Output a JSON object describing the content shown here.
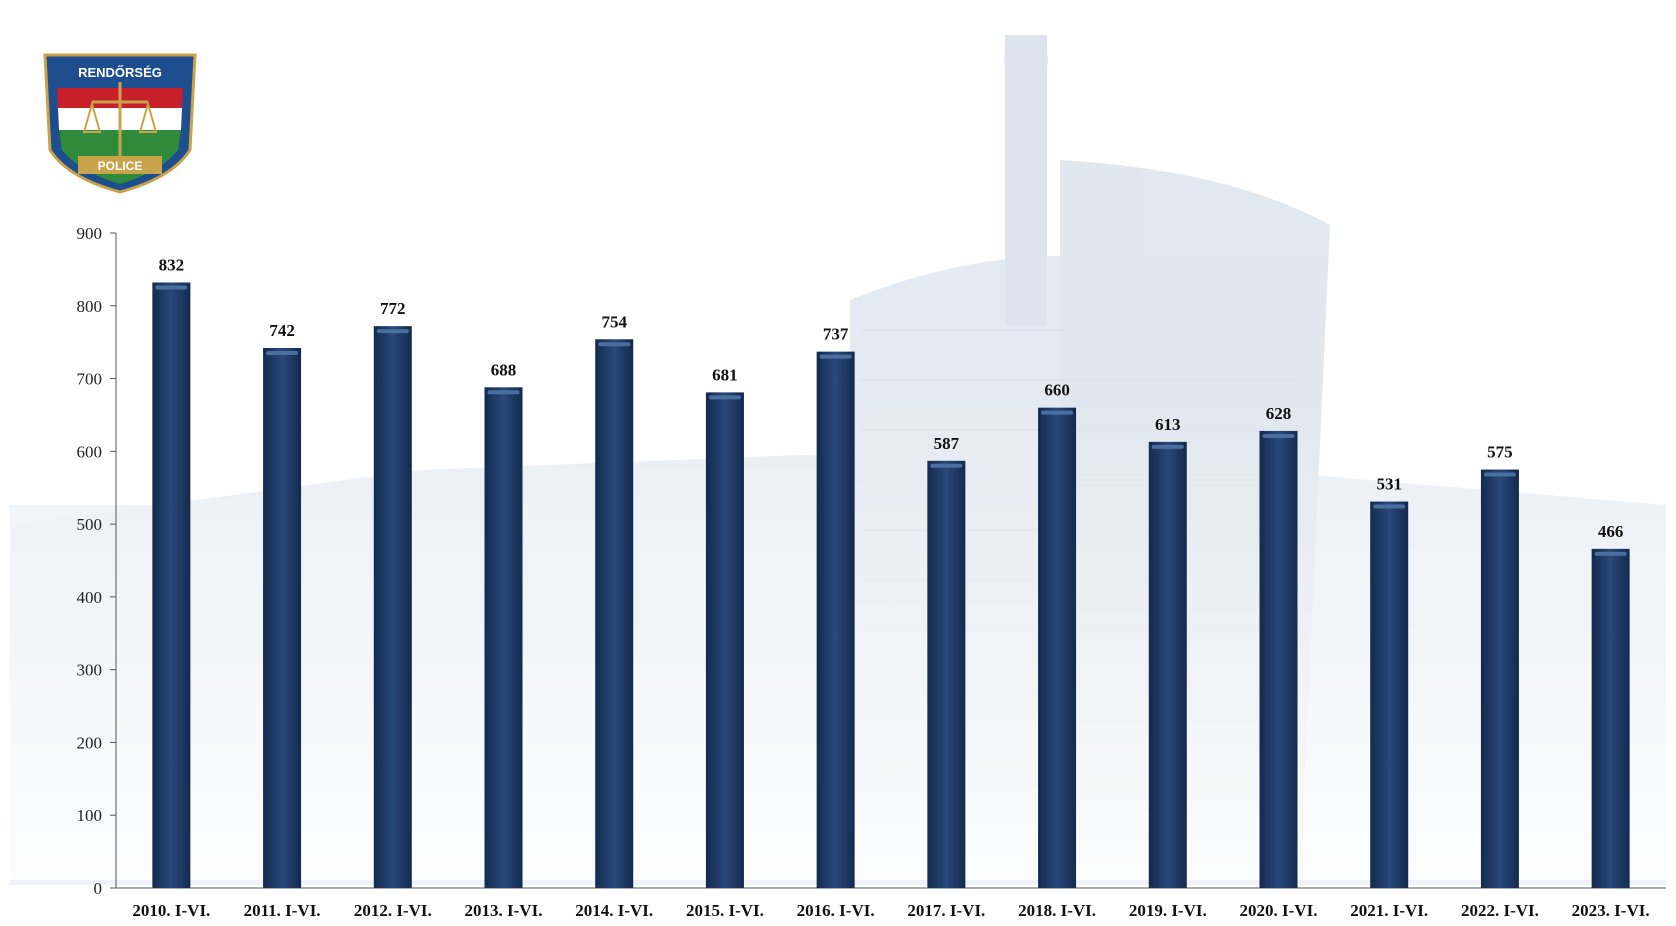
{
  "logo": {
    "top_text": "RENDŐRSÉG",
    "bottom_text": "POLICE",
    "colors": {
      "red": "#c8202a",
      "white": "#ffffff",
      "green": "#2f8a3a",
      "blue": "#1f4e8f",
      "gold": "#c9a34a"
    }
  },
  "colors": {
    "bar": "#1e3a66",
    "bar_highlight": "#4a6e9e",
    "axis": "#555555",
    "background_art": "#cfd9e6"
  },
  "chart_data": {
    "type": "bar",
    "title": "",
    "xlabel": "",
    "ylabel": "",
    "ylim": [
      0,
      900
    ],
    "yticks": [
      0,
      100,
      200,
      300,
      400,
      500,
      600,
      700,
      800,
      900
    ],
    "grid": false,
    "categories": [
      "2010. I-VI.",
      "2011. I-VI.",
      "2012. I-VI.",
      "2013. I-VI.",
      "2014. I-VI.",
      "2015. I-VI.",
      "2016. I-VI.",
      "2017. I-VI.",
      "2018. I-VI.",
      "2019. I-VI.",
      "2020. I-VI.",
      "2021. I-VI.",
      "2022. I-VI.",
      "2023. I-VI."
    ],
    "values": [
      832,
      742,
      772,
      688,
      754,
      681,
      737,
      587,
      660,
      613,
      628,
      531,
      575,
      466
    ]
  }
}
